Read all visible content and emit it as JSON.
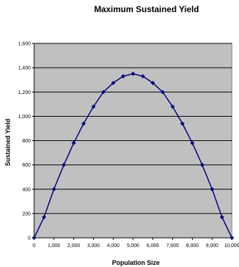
{
  "chart_data": {
    "type": "line",
    "title": "Maximum Sustained Yield",
    "xlabel": "Population Size",
    "ylabel": "Sustained Yield",
    "x": [
      0,
      500,
      1000,
      1500,
      2000,
      2500,
      3000,
      3500,
      4000,
      4500,
      5000,
      5500,
      6000,
      6500,
      7000,
      7500,
      8000,
      8500,
      9000,
      9500,
      10000
    ],
    "series": [
      {
        "values": [
          0,
          170,
          400,
          600,
          780,
          940,
          1080,
          1200,
          1275,
          1330,
          1350,
          1330,
          1275,
          1200,
          1080,
          940,
          780,
          600,
          400,
          170,
          0
        ]
      }
    ],
    "xlim": [
      0,
      10000
    ],
    "ylim": [
      0,
      1600
    ],
    "xticks": [
      0,
      1000,
      2000,
      3000,
      4000,
      5000,
      6000,
      7000,
      8000,
      9000,
      10000
    ],
    "yticks": [
      0,
      200,
      400,
      600,
      800,
      1000,
      1200,
      1400,
      1600
    ],
    "xtick_labels": [
      "0",
      "1,000",
      "2,000",
      "3,000",
      "4,000",
      "5,000",
      "6,000",
      "7,000",
      "8,000",
      "9,000",
      "10,000"
    ],
    "ytick_labels": [
      "0",
      "200",
      "400",
      "600",
      "800",
      "1,000",
      "1,200",
      "1,400",
      "1,600"
    ],
    "grid": true,
    "legend": "none",
    "marker": "diamond",
    "colors": {
      "plot_background": "#c0c0c0",
      "line": "#000080",
      "gridline": "#000000"
    }
  }
}
